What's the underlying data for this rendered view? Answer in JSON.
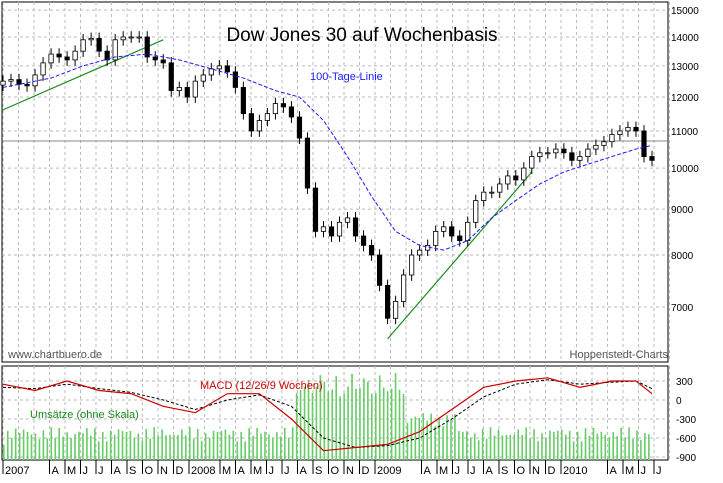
{
  "chart_data": {
    "type": "candlestick",
    "title": "Dow Jones 30 auf Wochenbasis",
    "watermark_left": "www.chartbuero.de",
    "watermark_right": "Hoppenstedt-Charts",
    "price_ticks": [
      15000,
      14000,
      13000,
      12000,
      11000,
      10000,
      9000,
      8000,
      7000
    ],
    "price_tick_labels": [
      "15000",
      "14000",
      "13000",
      "12000",
      "11000",
      "10000",
      "9000",
      "8000",
      "7000"
    ],
    "ma_label": "100-Tage-Linie",
    "macd_label": "MACD (12/26/9 Wochen)",
    "volume_label": "Umsätze (ohne Skala)",
    "macd_ticks": [
      300,
      0,
      -300,
      -600,
      -900
    ],
    "macd_tick_labels": [
      "300",
      "0",
      "-300",
      "-600",
      "-900"
    ],
    "x_labels": [
      {
        "t": "2007",
        "m": 0
      },
      {
        "t": "A",
        "m": 3
      },
      {
        "t": "M",
        "m": 4
      },
      {
        "t": "J",
        "m": 5
      },
      {
        "t": "J",
        "m": 6
      },
      {
        "t": "A",
        "m": 7
      },
      {
        "t": "S",
        "m": 8
      },
      {
        "t": "O",
        "m": 9
      },
      {
        "t": "N",
        "m": 10
      },
      {
        "t": "D",
        "m": 11
      },
      {
        "t": "2008",
        "m": 12
      },
      {
        "t": "M",
        "m": 14
      },
      {
        "t": "A",
        "m": 15
      },
      {
        "t": "M",
        "m": 16
      },
      {
        "t": "J",
        "m": 17
      },
      {
        "t": "J",
        "m": 18
      },
      {
        "t": "A",
        "m": 19
      },
      {
        "t": "S",
        "m": 20
      },
      {
        "t": "O",
        "m": 21
      },
      {
        "t": "N",
        "m": 22
      },
      {
        "t": "D",
        "m": 23
      },
      {
        "t": "2009",
        "m": 24
      },
      {
        "t": "A",
        "m": 27
      },
      {
        "t": "M",
        "m": 28
      },
      {
        "t": "J",
        "m": 29
      },
      {
        "t": "J",
        "m": 30
      },
      {
        "t": "A",
        "m": 31
      },
      {
        "t": "S",
        "m": 32
      },
      {
        "t": "O",
        "m": 33
      },
      {
        "t": "N",
        "m": 34
      },
      {
        "t": "D",
        "m": 35
      },
      {
        "t": "2010",
        "m": 36
      },
      {
        "t": "A",
        "m": 39
      },
      {
        "t": "M",
        "m": 40
      },
      {
        "t": "J",
        "m": 41
      },
      {
        "t": "J",
        "m": 42
      }
    ],
    "closes": [
      [
        0,
        12500
      ],
      [
        1,
        12550
      ],
      [
        2,
        12400
      ],
      [
        3,
        12350
      ],
      [
        4,
        12700
      ],
      [
        5,
        13100
      ],
      [
        6,
        13400
      ],
      [
        7,
        13300
      ],
      [
        8,
        13200
      ],
      [
        9,
        13500
      ],
      [
        10,
        13900
      ],
      [
        11,
        13950
      ],
      [
        12,
        13500
      ],
      [
        13,
        13200
      ],
      [
        14,
        13900
      ],
      [
        15,
        14000
      ],
      [
        16,
        14000
      ],
      [
        17,
        14000
      ],
      [
        18,
        13300
      ],
      [
        19,
        13200
      ],
      [
        20,
        13100
      ],
      [
        21,
        12200
      ],
      [
        22,
        12300
      ],
      [
        23,
        12000
      ],
      [
        24,
        12500
      ],
      [
        25,
        12700
      ],
      [
        26,
        12900
      ],
      [
        27,
        13000
      ],
      [
        28,
        12800
      ],
      [
        29,
        12300
      ],
      [
        30,
        11500
      ],
      [
        31,
        11000
      ],
      [
        32,
        11300
      ],
      [
        33,
        11500
      ],
      [
        34,
        11800
      ],
      [
        35,
        11700
      ],
      [
        36,
        11400
      ],
      [
        37,
        10800
      ],
      [
        38,
        9500
      ],
      [
        39,
        8500
      ],
      [
        40,
        8600
      ],
      [
        41,
        8400
      ],
      [
        42,
        8700
      ],
      [
        43,
        8800
      ],
      [
        44,
        8400
      ],
      [
        45,
        8200
      ],
      [
        46,
        8000
      ],
      [
        47,
        7400
      ],
      [
        48,
        6800
      ],
      [
        49,
        7100
      ],
      [
        50,
        7600
      ],
      [
        51,
        8000
      ],
      [
        52,
        8100
      ],
      [
        53,
        8200
      ],
      [
        54,
        8500
      ],
      [
        55,
        8600
      ],
      [
        56,
        8400
      ],
      [
        57,
        8300
      ],
      [
        58,
        8700
      ],
      [
        59,
        9200
      ],
      [
        60,
        9400
      ],
      [
        61,
        9400
      ],
      [
        62,
        9600
      ],
      [
        63,
        9800
      ],
      [
        64,
        9700
      ],
      [
        65,
        10000
      ],
      [
        66,
        10300
      ],
      [
        67,
        10400
      ],
      [
        68,
        10400
      ],
      [
        69,
        10500
      ],
      [
        70,
        10400
      ],
      [
        71,
        10200
      ],
      [
        72,
        10300
      ],
      [
        73,
        10500
      ],
      [
        74,
        10600
      ],
      [
        75,
        10700
      ],
      [
        76,
        10900
      ],
      [
        77,
        11000
      ],
      [
        78,
        11100
      ],
      [
        79,
        11000
      ],
      [
        80,
        10300
      ],
      [
        81,
        10200
      ]
    ],
    "ma_100": [
      [
        0,
        12300
      ],
      [
        6,
        12600
      ],
      [
        10,
        13000
      ],
      [
        14,
        13300
      ],
      [
        18,
        13400
      ],
      [
        22,
        13200
      ],
      [
        26,
        12900
      ],
      [
        30,
        12600
      ],
      [
        34,
        12200
      ],
      [
        37,
        12000
      ],
      [
        40,
        11300
      ],
      [
        43,
        10300
      ],
      [
        46,
        9300
      ],
      [
        49,
        8500
      ],
      [
        52,
        8200
      ],
      [
        55,
        8100
      ],
      [
        58,
        8300
      ],
      [
        61,
        8800
      ],
      [
        64,
        9200
      ],
      [
        67,
        9600
      ],
      [
        70,
        9900
      ],
      [
        73,
        10100
      ],
      [
        76,
        10300
      ],
      [
        79,
        10500
      ],
      [
        81,
        10600
      ]
    ],
    "macd": [
      [
        0,
        250
      ],
      [
        4,
        150
      ],
      [
        8,
        300
      ],
      [
        12,
        150
      ],
      [
        16,
        100
      ],
      [
        20,
        -100
      ],
      [
        24,
        -200
      ],
      [
        28,
        100
      ],
      [
        32,
        100
      ],
      [
        36,
        -300
      ],
      [
        40,
        -800
      ],
      [
        44,
        -750
      ],
      [
        48,
        -700
      ],
      [
        52,
        -500
      ],
      [
        56,
        -150
      ],
      [
        60,
        200
      ],
      [
        64,
        300
      ],
      [
        68,
        350
      ],
      [
        72,
        200
      ],
      [
        76,
        300
      ],
      [
        79,
        300
      ],
      [
        81,
        100
      ]
    ],
    "macd_signal": [
      [
        0,
        200
      ],
      [
        4,
        180
      ],
      [
        8,
        250
      ],
      [
        12,
        180
      ],
      [
        16,
        120
      ],
      [
        20,
        0
      ],
      [
        24,
        -150
      ],
      [
        28,
        0
      ],
      [
        32,
        80
      ],
      [
        36,
        -100
      ],
      [
        40,
        -600
      ],
      [
        44,
        -750
      ],
      [
        48,
        -720
      ],
      [
        52,
        -600
      ],
      [
        56,
        -300
      ],
      [
        60,
        50
      ],
      [
        64,
        250
      ],
      [
        68,
        320
      ],
      [
        72,
        250
      ],
      [
        76,
        280
      ],
      [
        79,
        300
      ],
      [
        81,
        180
      ]
    ]
  }
}
